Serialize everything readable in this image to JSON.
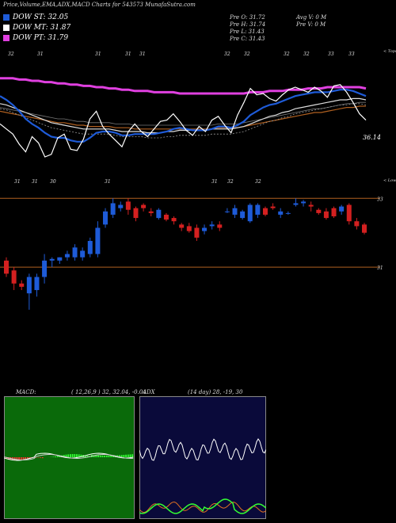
{
  "header": {
    "title": "Price,Volume,EMA,ADX,MACD Charts for 543573 MunafaSutra.com",
    "legend": [
      {
        "label": "DOW ST: 32.05",
        "color": "#1e5bd8"
      },
      {
        "label": "DOW MT: 31.87",
        "color": "#ffffff"
      },
      {
        "label": "DOW PT: 31.79",
        "color": "#e040e0"
      }
    ],
    "ohlc": [
      {
        "col1": "Pre   O: 31.72",
        "col2": "Avg V: 0   M"
      },
      {
        "col1": "Pre   H: 31.74",
        "col2": "Pre   V: 0   M"
      },
      {
        "col1": "Pre   L: 31.43",
        "col2": ""
      },
      {
        "col1": "Pre   C: 31.43",
        "col2": ""
      }
    ]
  },
  "chart_data": [
    {
      "type": "line",
      "name": "ema_panel",
      "top_labels": [
        "32",
        "31",
        "31",
        "31",
        "31",
        "32",
        "32",
        "32",
        "32",
        "33",
        "33"
      ],
      "bottom_labels": [
        "31",
        "31",
        "30",
        "31",
        "31",
        "32",
        "32"
      ],
      "right_top_label": "< Tops",
      "right_bottom_label": "< Lows",
      "last_value_label": "36.14",
      "price": [
        35.6,
        35.2,
        34.8,
        34.0,
        33.4,
        34.6,
        34.1,
        33.0,
        33.2,
        34.5,
        34.8,
        33.6,
        33.5,
        34.4,
        36.0,
        36.6,
        35.4,
        34.8,
        34.3,
        33.8,
        35.0,
        35.6,
        35.0,
        34.6,
        35.2,
        35.8,
        35.9,
        36.4,
        35.8,
        35.1,
        34.7,
        35.4,
        35.0,
        35.9,
        36.2,
        35.5,
        34.9,
        36.3,
        37.3,
        38.4,
        37.9,
        38.0,
        37.6,
        37.4,
        37.9,
        38.3,
        38.5,
        38.3,
        38.1,
        38.5,
        38.2,
        37.7,
        38.6,
        38.7,
        38.1,
        37.3,
        36.4,
        35.9
      ],
      "ema_fast": [
        37.8,
        37.5,
        37.1,
        36.6,
        36.0,
        35.6,
        35.3,
        34.9,
        34.6,
        34.5,
        34.5,
        34.3,
        34.2,
        34.2,
        34.5,
        34.9,
        35.0,
        35.0,
        34.9,
        34.7,
        34.7,
        34.8,
        34.8,
        34.8,
        34.8,
        34.9,
        35.0,
        35.2,
        35.3,
        35.2,
        35.1,
        35.1,
        35.1,
        35.2,
        35.4,
        35.4,
        35.3,
        35.5,
        35.8,
        36.3,
        36.6,
        36.9,
        37.1,
        37.2,
        37.4,
        37.6,
        37.8,
        37.9,
        38.0,
        38.1,
        38.1,
        38.1,
        38.2,
        38.3,
        38.3,
        38.2,
        38.0,
        37.8
      ],
      "ema_mid": [
        37.2,
        37.1,
        36.9,
        36.7,
        36.5,
        36.3,
        36.1,
        35.9,
        35.7,
        35.6,
        35.5,
        35.4,
        35.3,
        35.2,
        35.2,
        35.2,
        35.2,
        35.2,
        35.1,
        35.0,
        35.0,
        35.0,
        35.0,
        34.9,
        34.9,
        34.9,
        35.0,
        35.0,
        35.1,
        35.1,
        35.1,
        35.1,
        35.1,
        35.2,
        35.2,
        35.2,
        35.2,
        35.3,
        35.4,
        35.6,
        35.8,
        36.0,
        36.2,
        36.3,
        36.5,
        36.6,
        36.8,
        36.9,
        37.0,
        37.1,
        37.2,
        37.3,
        37.4,
        37.5,
        37.5,
        37.6,
        37.6,
        37.5
      ],
      "ema_slow": [
        36.6,
        36.5,
        36.4,
        36.3,
        36.2,
        36.1,
        36.0,
        35.9,
        35.8,
        35.7,
        35.7,
        35.6,
        35.5,
        35.5,
        35.4,
        35.4,
        35.4,
        35.4,
        35.3,
        35.3,
        35.3,
        35.2,
        35.2,
        35.2,
        35.2,
        35.2,
        35.2,
        35.2,
        35.2,
        35.2,
        35.2,
        35.2,
        35.2,
        35.2,
        35.3,
        35.3,
        35.3,
        35.3,
        35.4,
        35.5,
        35.6,
        35.7,
        35.8,
        35.9,
        36.0,
        36.1,
        36.2,
        36.3,
        36.4,
        36.5,
        36.5,
        36.6,
        36.7,
        36.8,
        36.9,
        36.9,
        37.0,
        37.0
      ],
      "dow_pt": [
        39.2,
        39.2,
        39.2,
        39.1,
        39.1,
        39.0,
        39.0,
        38.9,
        38.9,
        38.8,
        38.8,
        38.7,
        38.7,
        38.6,
        38.6,
        38.5,
        38.5,
        38.4,
        38.4,
        38.3,
        38.3,
        38.2,
        38.2,
        38.2,
        38.1,
        38.1,
        38.1,
        38.1,
        38.0,
        38.0,
        38.0,
        38.0,
        38.0,
        38.0,
        38.0,
        38.0,
        38.0,
        38.0,
        38.0,
        38.1,
        38.1,
        38.1,
        38.2,
        38.2,
        38.2,
        38.3,
        38.3,
        38.3,
        38.4,
        38.4,
        38.4,
        38.5,
        38.5,
        38.5,
        38.5,
        38.5,
        38.5,
        38.4
      ],
      "ylim": [
        31,
        41
      ]
    },
    {
      "type": "candlestick",
      "name": "price_panel",
      "levels": [
        {
          "label": "33",
          "value": 33.1
        },
        {
          "label": "31",
          "value": 31.0
        }
      ],
      "candles": [
        {
          "o": 31.2,
          "h": 31.3,
          "l": 30.7,
          "c": 30.8
        },
        {
          "o": 30.9,
          "h": 31.0,
          "l": 30.3,
          "c": 30.5
        },
        {
          "o": 30.5,
          "h": 30.6,
          "l": 30.3,
          "c": 30.4
        },
        {
          "o": 30.2,
          "h": 30.8,
          "l": 29.7,
          "c": 30.7
        },
        {
          "o": 30.3,
          "h": 30.8,
          "l": 30.1,
          "c": 30.7
        },
        {
          "o": 30.7,
          "h": 31.4,
          "l": 30.5,
          "c": 31.2
        },
        {
          "o": 31.2,
          "h": 31.3,
          "l": 31.0,
          "c": 31.25
        },
        {
          "o": 31.2,
          "h": 31.3,
          "l": 31.1,
          "c": 31.3
        },
        {
          "o": 31.3,
          "h": 31.5,
          "l": 31.2,
          "c": 31.4
        },
        {
          "o": 31.3,
          "h": 31.7,
          "l": 31.2,
          "c": 31.6
        },
        {
          "o": 31.3,
          "h": 31.6,
          "l": 31.2,
          "c": 31.5
        },
        {
          "o": 31.4,
          "h": 31.9,
          "l": 31.3,
          "c": 31.8
        },
        {
          "o": 31.4,
          "h": 32.4,
          "l": 31.3,
          "c": 32.2
        },
        {
          "o": 32.3,
          "h": 32.8,
          "l": 32.2,
          "c": 32.7
        },
        {
          "o": 32.6,
          "h": 33.1,
          "l": 32.5,
          "c": 32.95
        },
        {
          "o": 32.8,
          "h": 33.0,
          "l": 32.7,
          "c": 32.9
        },
        {
          "o": 33.0,
          "h": 33.1,
          "l": 32.6,
          "c": 32.75
        },
        {
          "o": 32.8,
          "h": 32.85,
          "l": 32.4,
          "c": 32.5
        },
        {
          "o": 32.9,
          "h": 32.95,
          "l": 32.7,
          "c": 32.8
        },
        {
          "o": 32.7,
          "h": 32.8,
          "l": 32.55,
          "c": 32.65
        },
        {
          "o": 32.5,
          "h": 32.8,
          "l": 32.45,
          "c": 32.75
        },
        {
          "o": 32.6,
          "h": 32.65,
          "l": 32.4,
          "c": 32.45
        },
        {
          "o": 32.5,
          "h": 32.55,
          "l": 32.3,
          "c": 32.4
        },
        {
          "o": 32.3,
          "h": 32.35,
          "l": 32.1,
          "c": 32.2
        },
        {
          "o": 32.25,
          "h": 32.35,
          "l": 32.05,
          "c": 32.1
        },
        {
          "o": 32.2,
          "h": 32.3,
          "l": 31.8,
          "c": 31.9
        },
        {
          "o": 32.1,
          "h": 32.3,
          "l": 32.0,
          "c": 32.2
        },
        {
          "o": 32.25,
          "h": 32.4,
          "l": 32.15,
          "c": 32.3
        },
        {
          "o": 32.3,
          "h": 32.4,
          "l": 32.1,
          "c": 32.2
        },
        {
          "o": 32.7,
          "h": 32.8,
          "l": 32.65,
          "c": 32.7
        },
        {
          "o": 32.6,
          "h": 32.9,
          "l": 32.5,
          "c": 32.8
        },
        {
          "o": 32.5,
          "h": 32.75,
          "l": 32.45,
          "c": 32.7
        },
        {
          "o": 32.4,
          "h": 32.95,
          "l": 32.35,
          "c": 32.9
        },
        {
          "o": 32.6,
          "h": 32.95,
          "l": 32.5,
          "c": 32.9
        },
        {
          "o": 32.8,
          "h": 32.85,
          "l": 32.55,
          "c": 32.6
        },
        {
          "o": 32.85,
          "h": 32.95,
          "l": 32.75,
          "c": 32.8
        },
        {
          "o": 32.6,
          "h": 32.8,
          "l": 32.5,
          "c": 32.7
        },
        {
          "o": 32.65,
          "h": 32.7,
          "l": 32.6,
          "c": 32.65
        },
        {
          "o": 32.9,
          "h": 33.1,
          "l": 32.85,
          "c": 32.95
        },
        {
          "o": 32.95,
          "h": 33.05,
          "l": 32.85,
          "c": 33.0
        },
        {
          "o": 32.9,
          "h": 33.0,
          "l": 32.7,
          "c": 32.85
        },
        {
          "o": 32.75,
          "h": 32.8,
          "l": 32.6,
          "c": 32.65
        },
        {
          "o": 32.7,
          "h": 32.8,
          "l": 32.45,
          "c": 32.5
        },
        {
          "o": 32.8,
          "h": 32.85,
          "l": 32.5,
          "c": 32.55
        },
        {
          "o": 32.7,
          "h": 32.9,
          "l": 32.6,
          "c": 32.85
        },
        {
          "o": 32.9,
          "h": 32.95,
          "l": 32.3,
          "c": 32.4
        },
        {
          "o": 32.4,
          "h": 32.5,
          "l": 32.15,
          "c": 32.25
        },
        {
          "o": 32.3,
          "h": 32.35,
          "l": 32.0,
          "c": 32.05
        }
      ],
      "ylim": [
        29.6,
        33.3
      ]
    },
    {
      "type": "line",
      "name": "macd_panel",
      "label": "MACD:",
      "params": "( 12,26,9 ) 32, 32.04, -0.04"
    },
    {
      "type": "line",
      "name": "adx_panel",
      "label": "ADX",
      "params": "(14  day) 28, -19, 30"
    }
  ],
  "colors": {
    "up": "#1e5bd8",
    "down": "#d42020",
    "ema_fast": "#1e5bd8",
    "ema_mid": "#dddddd",
    "ema_slow": "#b06020",
    "dow_pt": "#e040e0",
    "price_line": "#ffffff",
    "level_line": "#b06020",
    "macd_bg": "#0a6a0a",
    "adx_bg": "#0a0a3a",
    "hist": "#33ff33"
  }
}
